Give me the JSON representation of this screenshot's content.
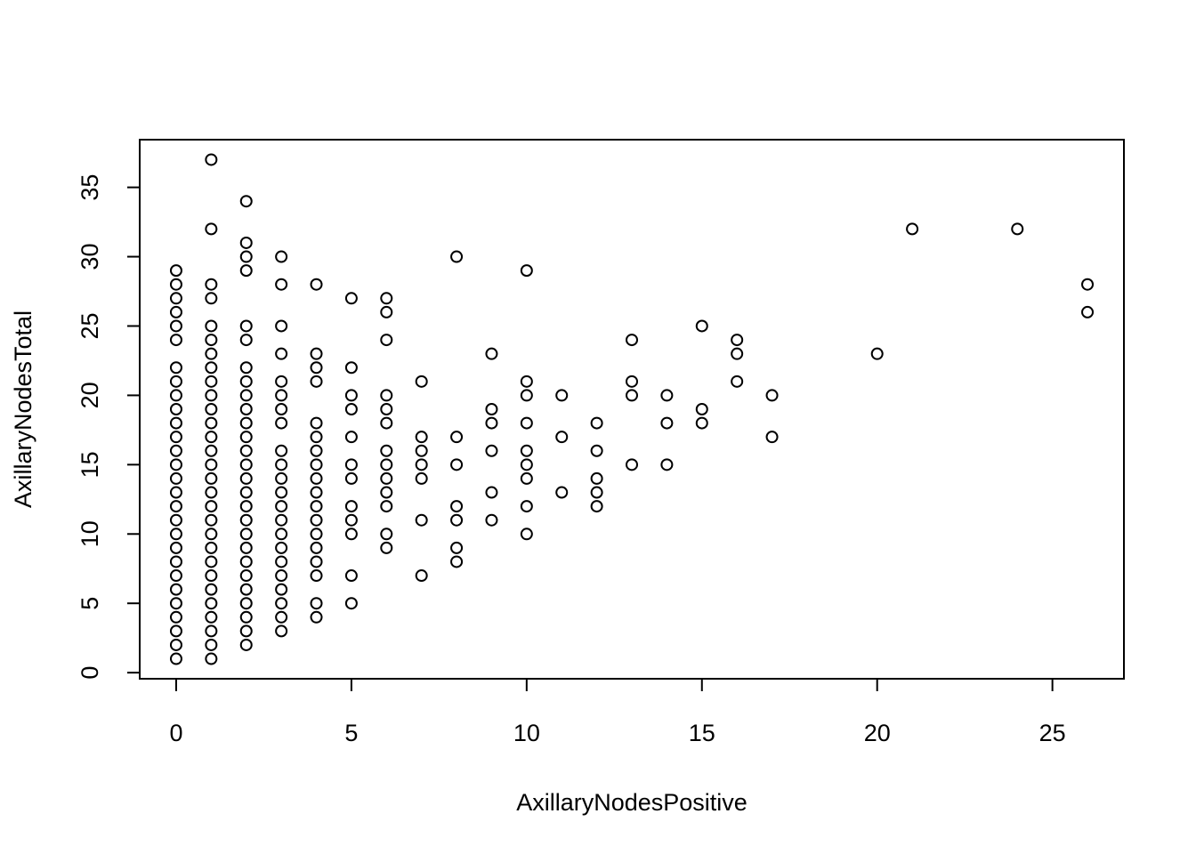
{
  "chart_data": {
    "type": "scatter",
    "title": "",
    "xlabel": "AxillaryNodesPositive",
    "ylabel": "AxillaryNodesTotal",
    "xlim": [
      -1.04,
      27.04
    ],
    "ylim": [
      -0.44,
      38.44
    ],
    "xticks": [
      0,
      5,
      10,
      15,
      20,
      25
    ],
    "yticks": [
      0,
      5,
      10,
      15,
      20,
      25,
      30,
      35
    ],
    "xtick_labels": [
      "0",
      "5",
      "10",
      "15",
      "20",
      "25"
    ],
    "ytick_labels": [
      "0",
      "5",
      "10",
      "15",
      "20",
      "25",
      "30",
      "35"
    ],
    "grid": false,
    "marker": "open-circle",
    "point_color": "#000000",
    "points": [
      [
        0,
        1
      ],
      [
        0,
        2
      ],
      [
        0,
        3
      ],
      [
        0,
        4
      ],
      [
        0,
        5
      ],
      [
        0,
        6
      ],
      [
        0,
        7
      ],
      [
        0,
        8
      ],
      [
        0,
        9
      ],
      [
        0,
        10
      ],
      [
        0,
        11
      ],
      [
        0,
        12
      ],
      [
        0,
        13
      ],
      [
        0,
        14
      ],
      [
        0,
        15
      ],
      [
        0,
        16
      ],
      [
        0,
        17
      ],
      [
        0,
        18
      ],
      [
        0,
        19
      ],
      [
        0,
        20
      ],
      [
        0,
        21
      ],
      [
        0,
        22
      ],
      [
        0,
        24
      ],
      [
        0,
        25
      ],
      [
        0,
        26
      ],
      [
        0,
        27
      ],
      [
        0,
        28
      ],
      [
        0,
        29
      ],
      [
        1,
        1
      ],
      [
        1,
        2
      ],
      [
        1,
        3
      ],
      [
        1,
        4
      ],
      [
        1,
        5
      ],
      [
        1,
        6
      ],
      [
        1,
        7
      ],
      [
        1,
        8
      ],
      [
        1,
        9
      ],
      [
        1,
        10
      ],
      [
        1,
        11
      ],
      [
        1,
        12
      ],
      [
        1,
        13
      ],
      [
        1,
        14
      ],
      [
        1,
        15
      ],
      [
        1,
        16
      ],
      [
        1,
        17
      ],
      [
        1,
        18
      ],
      [
        1,
        19
      ],
      [
        1,
        20
      ],
      [
        1,
        21
      ],
      [
        1,
        22
      ],
      [
        1,
        23
      ],
      [
        1,
        24
      ],
      [
        1,
        25
      ],
      [
        1,
        27
      ],
      [
        1,
        28
      ],
      [
        1,
        32
      ],
      [
        1,
        37
      ],
      [
        2,
        2
      ],
      [
        2,
        3
      ],
      [
        2,
        4
      ],
      [
        2,
        5
      ],
      [
        2,
        6
      ],
      [
        2,
        7
      ],
      [
        2,
        8
      ],
      [
        2,
        9
      ],
      [
        2,
        10
      ],
      [
        2,
        11
      ],
      [
        2,
        12
      ],
      [
        2,
        13
      ],
      [
        2,
        14
      ],
      [
        2,
        15
      ],
      [
        2,
        16
      ],
      [
        2,
        17
      ],
      [
        2,
        18
      ],
      [
        2,
        19
      ],
      [
        2,
        20
      ],
      [
        2,
        21
      ],
      [
        2,
        22
      ],
      [
        2,
        24
      ],
      [
        2,
        25
      ],
      [
        2,
        29
      ],
      [
        2,
        30
      ],
      [
        2,
        31
      ],
      [
        2,
        34
      ],
      [
        3,
        3
      ],
      [
        3,
        4
      ],
      [
        3,
        5
      ],
      [
        3,
        6
      ],
      [
        3,
        7
      ],
      [
        3,
        8
      ],
      [
        3,
        9
      ],
      [
        3,
        10
      ],
      [
        3,
        11
      ],
      [
        3,
        12
      ],
      [
        3,
        13
      ],
      [
        3,
        14
      ],
      [
        3,
        15
      ],
      [
        3,
        16
      ],
      [
        3,
        18
      ],
      [
        3,
        19
      ],
      [
        3,
        20
      ],
      [
        3,
        21
      ],
      [
        3,
        23
      ],
      [
        3,
        25
      ],
      [
        3,
        28
      ],
      [
        3,
        30
      ],
      [
        4,
        4
      ],
      [
        4,
        5
      ],
      [
        4,
        7
      ],
      [
        4,
        8
      ],
      [
        4,
        9
      ],
      [
        4,
        10
      ],
      [
        4,
        11
      ],
      [
        4,
        12
      ],
      [
        4,
        13
      ],
      [
        4,
        14
      ],
      [
        4,
        15
      ],
      [
        4,
        16
      ],
      [
        4,
        17
      ],
      [
        4,
        18
      ],
      [
        4,
        21
      ],
      [
        4,
        22
      ],
      [
        4,
        23
      ],
      [
        4,
        28
      ],
      [
        5,
        5
      ],
      [
        5,
        7
      ],
      [
        5,
        10
      ],
      [
        5,
        11
      ],
      [
        5,
        12
      ],
      [
        5,
        14
      ],
      [
        5,
        15
      ],
      [
        5,
        17
      ],
      [
        5,
        19
      ],
      [
        5,
        20
      ],
      [
        5,
        22
      ],
      [
        5,
        27
      ],
      [
        6,
        9
      ],
      [
        6,
        10
      ],
      [
        6,
        12
      ],
      [
        6,
        13
      ],
      [
        6,
        14
      ],
      [
        6,
        15
      ],
      [
        6,
        16
      ],
      [
        6,
        18
      ],
      [
        6,
        19
      ],
      [
        6,
        20
      ],
      [
        6,
        24
      ],
      [
        6,
        26
      ],
      [
        6,
        27
      ],
      [
        7,
        7
      ],
      [
        7,
        11
      ],
      [
        7,
        14
      ],
      [
        7,
        15
      ],
      [
        7,
        16
      ],
      [
        7,
        17
      ],
      [
        7,
        21
      ],
      [
        8,
        8
      ],
      [
        8,
        9
      ],
      [
        8,
        11
      ],
      [
        8,
        12
      ],
      [
        8,
        15
      ],
      [
        8,
        17
      ],
      [
        8,
        30
      ],
      [
        9,
        11
      ],
      [
        9,
        13
      ],
      [
        9,
        16
      ],
      [
        9,
        18
      ],
      [
        9,
        19
      ],
      [
        9,
        23
      ],
      [
        10,
        10
      ],
      [
        10,
        12
      ],
      [
        10,
        14
      ],
      [
        10,
        15
      ],
      [
        10,
        16
      ],
      [
        10,
        18
      ],
      [
        10,
        20
      ],
      [
        10,
        21
      ],
      [
        10,
        29
      ],
      [
        11,
        13
      ],
      [
        11,
        17
      ],
      [
        11,
        20
      ],
      [
        12,
        12
      ],
      [
        12,
        13
      ],
      [
        12,
        14
      ],
      [
        12,
        16
      ],
      [
        12,
        18
      ],
      [
        13,
        15
      ],
      [
        13,
        20
      ],
      [
        13,
        21
      ],
      [
        13,
        24
      ],
      [
        14,
        15
      ],
      [
        14,
        18
      ],
      [
        14,
        20
      ],
      [
        15,
        18
      ],
      [
        15,
        19
      ],
      [
        15,
        25
      ],
      [
        16,
        21
      ],
      [
        16,
        23
      ],
      [
        16,
        24
      ],
      [
        17,
        17
      ],
      [
        17,
        20
      ],
      [
        20,
        23
      ],
      [
        21,
        32
      ],
      [
        24,
        32
      ],
      [
        26,
        26
      ],
      [
        26,
        28
      ]
    ]
  }
}
